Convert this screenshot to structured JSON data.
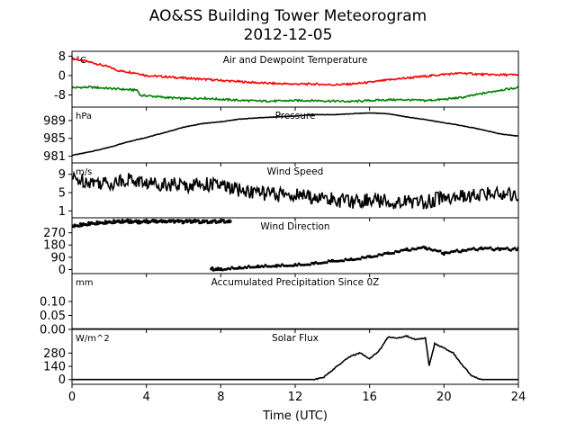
{
  "figure": {
    "title_line1": "AO&SS Building Tower Meteorogram",
    "title_line2": "2012-12-05",
    "xlabel": "Time (UTC)",
    "x_ticks": [
      "0",
      "4",
      "8",
      "12",
      "16",
      "20",
      "24"
    ]
  },
  "chart_data": [
    {
      "type": "line",
      "title": "Air and Dewpoint Temperature",
      "unit": "°C",
      "xlim": [
        0,
        24
      ],
      "ylim": [
        -13,
        10
      ],
      "y_ticks": [
        8,
        0,
        -8
      ],
      "series": [
        {
          "color": "#ff0000",
          "x": [
            0,
            1,
            2,
            2.5,
            3.5,
            4,
            5,
            6,
            7,
            8,
            9,
            10,
            11,
            12,
            13,
            14,
            15,
            16,
            17,
            18,
            19,
            20,
            21,
            22,
            23,
            24
          ],
          "y": [
            7,
            5.5,
            3.5,
            2,
            1,
            0,
            -0.5,
            -1,
            -1.5,
            -2,
            -2.5,
            -3,
            -3.3,
            -3.5,
            -3.5,
            -3.8,
            -3.5,
            -2.8,
            -1.8,
            -1,
            -0.3,
            0.5,
            1,
            0.5,
            0.3,
            0.3
          ]
        },
        {
          "color": "#008000",
          "x": [
            0,
            1,
            2,
            3,
            3.5,
            3.7,
            4,
            5,
            6,
            7,
            8,
            9,
            10,
            11,
            12,
            13,
            14,
            15,
            16,
            17,
            18,
            19,
            20,
            21,
            22,
            23,
            24
          ],
          "y": [
            -5,
            -4.8,
            -5.3,
            -5.8,
            -6,
            -8.3,
            -8.3,
            -9,
            -9.5,
            -9.3,
            -9.8,
            -10.2,
            -10.5,
            -10.5,
            -10.3,
            -10.3,
            -10.5,
            -10.7,
            -10.3,
            -10,
            -10,
            -10.3,
            -9.8,
            -9,
            -7.5,
            -6,
            -5
          ]
        }
      ]
    },
    {
      "type": "line",
      "title": "Pressure",
      "unit": "hPa",
      "xlim": [
        0,
        24
      ],
      "ylim": [
        979.5,
        992
      ],
      "y_ticks": [
        989,
        985,
        981
      ],
      "series": [
        {
          "color": "#000000",
          "x": [
            0,
            1,
            2,
            3,
            4,
            5,
            6,
            7,
            8,
            9,
            10,
            11,
            12,
            13,
            14,
            15,
            16,
            17,
            18,
            19,
            20,
            21,
            22,
            23,
            24
          ],
          "y": [
            981.2,
            982,
            983,
            984.2,
            985.2,
            986.3,
            987.5,
            988.3,
            988.7,
            989.3,
            989.6,
            989.8,
            990,
            990.3,
            990.3,
            990.5,
            990.7,
            990.5,
            989.8,
            989.2,
            988.5,
            987.8,
            987,
            986,
            985.5
          ]
        }
      ]
    },
    {
      "type": "line",
      "title": "Wind Speed",
      "unit": "m/s",
      "xlim": [
        0,
        24
      ],
      "ylim": [
        -0.5,
        11.5
      ],
      "y_ticks": [
        9,
        5,
        1
      ],
      "series": [
        {
          "color": "#000000",
          "x": [
            0,
            1,
            2,
            3,
            4,
            5,
            6,
            7,
            8,
            9,
            10,
            11,
            12,
            13,
            14,
            15,
            16,
            17,
            18,
            19,
            20,
            21,
            22,
            23,
            24
          ],
          "y": [
            8,
            7.5,
            7,
            8,
            7,
            7,
            6.5,
            7,
            6.5,
            5.5,
            5,
            4.5,
            4.5,
            4,
            3.5,
            3,
            3.5,
            3,
            3,
            3,
            4,
            4,
            4.5,
            5,
            4.5
          ]
        }
      ]
    },
    {
      "type": "scatter",
      "title": "Wind Direction",
      "xlim": [
        0,
        24
      ],
      "ylim": [
        -30,
        380
      ],
      "y_ticks": [
        270,
        180,
        90,
        0
      ],
      "series": [
        {
          "color": "#000000",
          "x": [
            0,
            0.5,
            1,
            1.5,
            2,
            2.5,
            3,
            3.5,
            4,
            4.5,
            5,
            5.5,
            6,
            6.5,
            7,
            7.5,
            8,
            8.5,
            7.5,
            8,
            9,
            10,
            11,
            12,
            13,
            14,
            15,
            16,
            17,
            18,
            19,
            20,
            21,
            22,
            23,
            24
          ],
          "y": [
            320,
            330,
            340,
            345,
            350,
            355,
            355,
            350,
            350,
            355,
            350,
            355,
            350,
            355,
            350,
            352,
            355,
            355,
            5,
            5,
            15,
            25,
            30,
            35,
            45,
            65,
            75,
            95,
            120,
            145,
            160,
            120,
            140,
            155,
            150,
            150
          ]
        }
      ]
    },
    {
      "type": "line",
      "title": "Accumulated Precipitation Since 0Z",
      "unit": "mm",
      "xlim": [
        0,
        24
      ],
      "ylim": [
        0,
        0.2
      ],
      "y_ticks": [
        "0.10",
        "0.05",
        "0.00"
      ],
      "series": [
        {
          "color": "#000000",
          "x": [
            0,
            24
          ],
          "y": [
            0,
            0
          ]
        }
      ]
    },
    {
      "type": "line",
      "title": "Solar Flux",
      "unit": "W/m^2",
      "xlim": [
        0,
        24
      ],
      "ylim": [
        -50,
        530
      ],
      "y_ticks": [
        280,
        140,
        0
      ],
      "series": [
        {
          "color": "#000000",
          "x": [
            0,
            13,
            13.5,
            14,
            14.5,
            15,
            15.5,
            16,
            16.5,
            17,
            17.5,
            18,
            18.5,
            19,
            19.2,
            19.5,
            20,
            20.5,
            21,
            21.5,
            22,
            24
          ],
          "y": [
            0,
            0,
            20,
            100,
            180,
            250,
            280,
            220,
            300,
            450,
            440,
            460,
            420,
            440,
            150,
            380,
            330,
            280,
            150,
            40,
            0,
            0
          ]
        }
      ]
    }
  ]
}
